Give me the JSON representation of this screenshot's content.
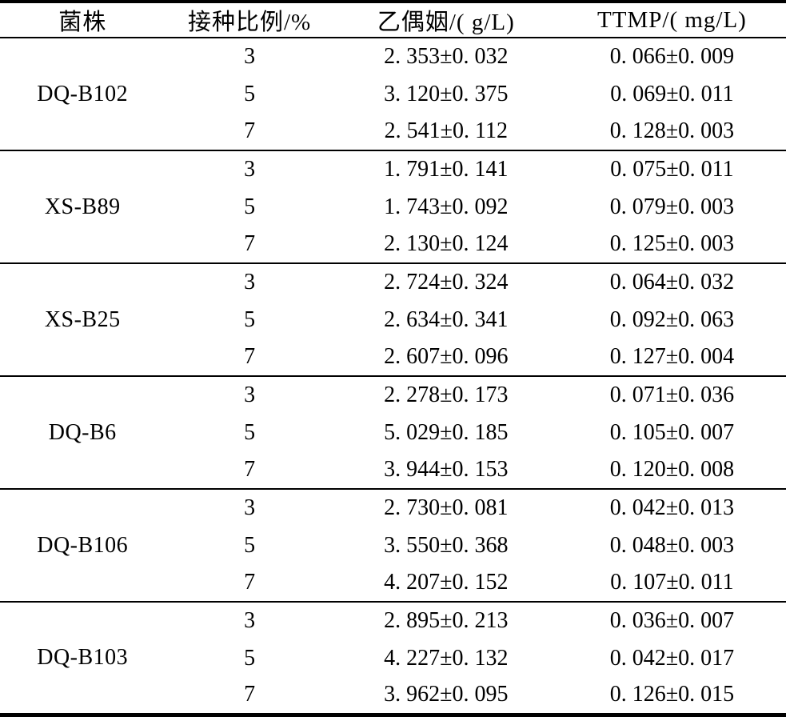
{
  "table": {
    "columns": [
      {
        "label": "菌株"
      },
      {
        "label": "接种比例/%"
      },
      {
        "label": "乙偶姻/( g/L)"
      },
      {
        "label": "TTMP/( mg/L)"
      }
    ],
    "groups": [
      {
        "strain": "DQ-B102",
        "entries": [
          {
            "ratio": "3",
            "acetoin": "2. 353±0. 032",
            "ttmp": "0. 066±0. 009"
          },
          {
            "ratio": "5",
            "acetoin": "3. 120±0. 375",
            "ttmp": "0. 069±0. 011"
          },
          {
            "ratio": "7",
            "acetoin": "2. 541±0. 112",
            "ttmp": "0. 128±0. 003"
          }
        ]
      },
      {
        "strain": "XS-B89",
        "entries": [
          {
            "ratio": "3",
            "acetoin": "1. 791±0. 141",
            "ttmp": "0. 075±0. 011"
          },
          {
            "ratio": "5",
            "acetoin": "1. 743±0. 092",
            "ttmp": "0. 079±0. 003"
          },
          {
            "ratio": "7",
            "acetoin": "2. 130±0. 124",
            "ttmp": "0. 125±0. 003"
          }
        ]
      },
      {
        "strain": "XS-B25",
        "entries": [
          {
            "ratio": "3",
            "acetoin": "2. 724±0. 324",
            "ttmp": "0. 064±0. 032"
          },
          {
            "ratio": "5",
            "acetoin": "2. 634±0. 341",
            "ttmp": "0. 092±0. 063"
          },
          {
            "ratio": "7",
            "acetoin": "2. 607±0. 096",
            "ttmp": "0. 127±0. 004"
          }
        ]
      },
      {
        "strain": "DQ-B6",
        "entries": [
          {
            "ratio": "3",
            "acetoin": "2. 278±0. 173",
            "ttmp": "0. 071±0. 036"
          },
          {
            "ratio": "5",
            "acetoin": "5. 029±0. 185",
            "ttmp": "0. 105±0. 007"
          },
          {
            "ratio": "7",
            "acetoin": "3. 944±0. 153",
            "ttmp": "0. 120±0. 008"
          }
        ]
      },
      {
        "strain": "DQ-B106",
        "entries": [
          {
            "ratio": "3",
            "acetoin": "2. 730±0. 081",
            "ttmp": "0. 042±0. 013"
          },
          {
            "ratio": "5",
            "acetoin": "3. 550±0. 368",
            "ttmp": "0. 048±0. 003"
          },
          {
            "ratio": "7",
            "acetoin": "4. 207±0. 152",
            "ttmp": "0. 107±0. 011"
          }
        ]
      },
      {
        "strain": "DQ-B103",
        "entries": [
          {
            "ratio": "3",
            "acetoin": "2. 895±0. 213",
            "ttmp": "0. 036±0. 007"
          },
          {
            "ratio": "5",
            "acetoin": "4. 227±0. 132",
            "ttmp": "0. 042±0. 017"
          },
          {
            "ratio": "7",
            "acetoin": "3. 962±0. 095",
            "ttmp": "0. 126±0. 015"
          }
        ]
      }
    ],
    "colors": {
      "text": "#000000",
      "background": "#ffffff",
      "rule": "#000000"
    }
  }
}
